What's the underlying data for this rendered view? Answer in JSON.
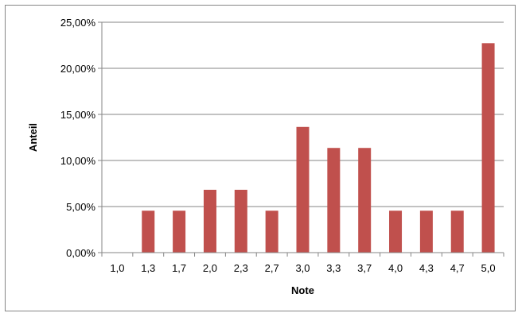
{
  "chart_data": {
    "type": "bar",
    "categories": [
      "1,0",
      "1,3",
      "1,7",
      "2,0",
      "2,3",
      "2,7",
      "3,0",
      "3,3",
      "3,7",
      "4,0",
      "4,3",
      "4,7",
      "5,0"
    ],
    "values": [
      0.0,
      4.55,
      4.55,
      6.82,
      6.82,
      4.55,
      13.64,
      11.36,
      11.36,
      4.55,
      4.55,
      4.55,
      22.73
    ],
    "value_format": "percent_2dec_comma",
    "title": "",
    "xlabel": "Note",
    "ylabel": "Anteil",
    "ylim": [
      0,
      25
    ],
    "yticks": [
      0,
      5,
      10,
      15,
      20,
      25
    ],
    "ytick_labels": [
      "0,00%",
      "5,00%",
      "10,00%",
      "15,00%",
      "20,00%",
      "25,00%"
    ],
    "grid": "horizontal-major",
    "legend": "none",
    "bar_color": "#c0504d",
    "grid_color": "#868686"
  }
}
